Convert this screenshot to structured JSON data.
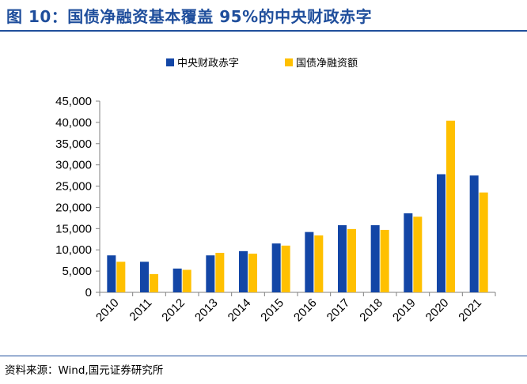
{
  "header": {
    "title": "图 10：国债净融资基本覆盖 95%的中央财政赤字"
  },
  "footer": {
    "source": "资料来源：Wind,国元证券研究所"
  },
  "colors": {
    "title": "#1f4e9c",
    "series_1": "#1346a6",
    "series_2": "#ffc000",
    "axis": "#808080"
  },
  "chart_data": {
    "type": "bar",
    "title": "",
    "xlabel": "",
    "ylabel": "",
    "ylim": [
      0,
      45000
    ],
    "yticks": [
      0,
      5000,
      10000,
      15000,
      20000,
      25000,
      30000,
      35000,
      40000,
      45000
    ],
    "ytick_labels": [
      "0",
      "5,000",
      "10,000",
      "15,000",
      "20,000",
      "25,000",
      "30,000",
      "35,000",
      "40,000",
      "45,000"
    ],
    "grid": false,
    "legend_position": "top-center",
    "categories": [
      "2010",
      "2011",
      "2012",
      "2013",
      "2014",
      "2015",
      "2016",
      "2017",
      "2018",
      "2019",
      "2020",
      "2021"
    ],
    "series": [
      {
        "name": "中央财政赤字",
        "color": "#1346a6",
        "values": [
          8700,
          7200,
          5600,
          8700,
          9700,
          11500,
          14200,
          15800,
          15800,
          18600,
          27800,
          27500
        ]
      },
      {
        "name": "国债净融资额",
        "color": "#ffc000",
        "values": [
          7200,
          4300,
          5300,
          9300,
          9100,
          11000,
          13400,
          14900,
          14700,
          17800,
          40400,
          23500
        ]
      }
    ]
  }
}
